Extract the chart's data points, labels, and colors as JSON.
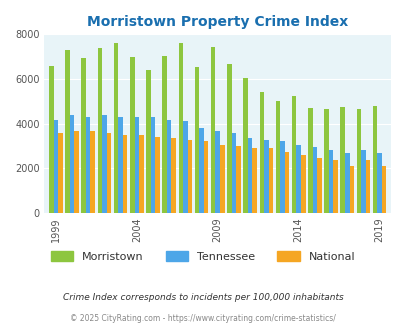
{
  "title": "Morristown Property Crime Index",
  "title_color": "#1a6faf",
  "bg_color": "#e8f4f8",
  "fig_bg": "#ffffff",
  "years": [
    1999,
    2000,
    2001,
    2002,
    2003,
    2004,
    2005,
    2006,
    2007,
    2008,
    2009,
    2010,
    2011,
    2012,
    2013,
    2014,
    2015,
    2016,
    2017,
    2018,
    2019
  ],
  "morristown": [
    6600,
    7300,
    6950,
    7400,
    7600,
    7000,
    6400,
    7050,
    7600,
    6550,
    7450,
    6650,
    6050,
    5400,
    5000,
    5250,
    4700,
    4650,
    4750,
    4650,
    4800
  ],
  "tennessee": [
    4150,
    4400,
    4300,
    4380,
    4300,
    4300,
    4300,
    4150,
    4100,
    3800,
    3650,
    3600,
    3350,
    3250,
    3200,
    3050,
    2950,
    2800,
    2700,
    2800,
    2700
  ],
  "national": [
    3600,
    3650,
    3650,
    3600,
    3500,
    3480,
    3400,
    3350,
    3250,
    3200,
    3050,
    2980,
    2900,
    2900,
    2750,
    2600,
    2450,
    2350,
    2100,
    2350,
    2100
  ],
  "colors": {
    "morristown": "#8dc63f",
    "tennessee": "#4da6e8",
    "national": "#f5a623"
  },
  "ylim": [
    0,
    8000
  ],
  "yticks": [
    0,
    2000,
    4000,
    6000,
    8000
  ],
  "xlabel_years": [
    1999,
    2004,
    2009,
    2014,
    2019
  ],
  "legend_labels": [
    "Morristown",
    "Tennessee",
    "National"
  ],
  "footnote1": "Crime Index corresponds to incidents per 100,000 inhabitants",
  "footnote2": "© 2025 CityRating.com - https://www.cityrating.com/crime-statistics/",
  "footnote1_color": "#333333",
  "footnote2_color": "#888888"
}
